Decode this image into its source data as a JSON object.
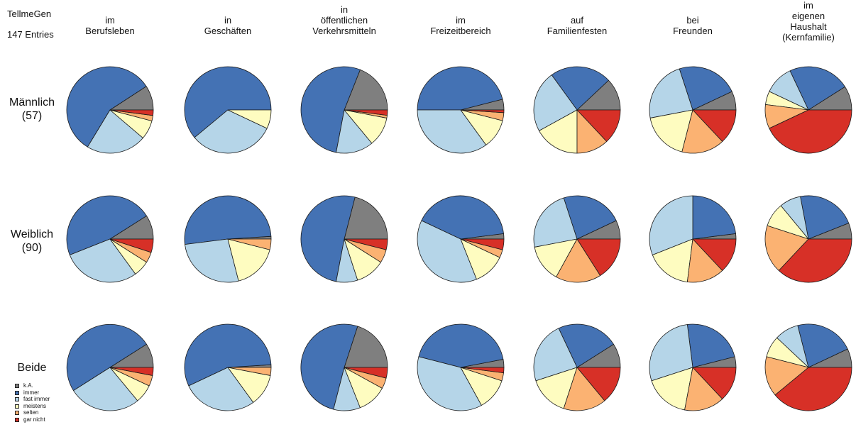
{
  "meta": {
    "source": "TellmeGen",
    "entries": "147 Entries"
  },
  "columns": [
    "im\nBerufsleben",
    "in\nGeschäften",
    "in\nöffentlichen\nVerkehrsmitteln",
    "im\nFreizeitbereich",
    "auf\nFamilienfesten",
    "bei\nFreunden",
    "im\neigenen\nHaushalt\n(Kernfamilie)"
  ],
  "rows": [
    "Männlich\n(57)",
    "Weiblich\n(90)",
    "Beide"
  ],
  "legend": [
    {
      "label": "k.A.",
      "color": "#7f7f7f"
    },
    {
      "label": "immer",
      "color": "#4472b4"
    },
    {
      "label": "fast immer",
      "color": "#b5d5e8"
    },
    {
      "label": "meistens",
      "color": "#fefcc0"
    },
    {
      "label": "selten",
      "color": "#fbb272"
    },
    {
      "label": "gar nicht",
      "color": "#d73027"
    }
  ],
  "chart_data": {
    "type": "pie",
    "categories": [
      "k.A.",
      "immer",
      "fast immer",
      "meistens",
      "selten",
      "gar nicht"
    ],
    "colors": [
      "#7f7f7f",
      "#4472b4",
      "#b5d5e8",
      "#fefcc0",
      "#fbb272",
      "#d73027"
    ],
    "start_angle_deg": 0,
    "direction": "counterclockwise",
    "units": "percent",
    "pies": [
      [
        {
          "column": "im\nBerufsleben",
          "values": [
            9,
            56,
            22,
            7,
            2,
            2
          ]
        },
        {
          "column": "in\nGeschäften",
          "values": [
            0,
            61,
            32,
            7,
            0,
            0
          ]
        },
        {
          "column": "in\nöffentlichen\nVerkehrsmitteln",
          "values": [
            19,
            53,
            14,
            11,
            1,
            2
          ]
        },
        {
          "column": "im\nFreizeitbereich",
          "values": [
            4,
            46,
            35,
            11,
            3,
            1
          ]
        },
        {
          "column": "auf\nFamilienfesten",
          "values": [
            12,
            23,
            23,
            17,
            12,
            13
          ]
        },
        {
          "column": "bei\nFreunden",
          "values": [
            7,
            23,
            23,
            18,
            16,
            13
          ]
        },
        {
          "column": "im\neigenen\nHaushalt\n(Kernfamilie)",
          "values": [
            9,
            23,
            11,
            5,
            9,
            43
          ]
        }
      ],
      [
        {
          "column": "im\nBerufsleben",
          "values": [
            9,
            47,
            29,
            6,
            4,
            5
          ]
        },
        {
          "column": "in\nGeschäften",
          "values": [
            1,
            51,
            27,
            17,
            4,
            0
          ]
        },
        {
          "column": "in\nöffentlichen\nVerkehrsmitteln",
          "values": [
            21,
            51,
            8,
            11,
            5,
            4
          ]
        },
        {
          "column": "im\nFreizeitbereich",
          "values": [
            2,
            41,
            38,
            12,
            3,
            4
          ]
        },
        {
          "column": "auf\nFamilienfesten",
          "values": [
            7,
            23,
            23,
            14,
            17,
            16
          ]
        },
        {
          "column": "bei\nFreunden",
          "values": [
            2,
            23,
            31,
            17,
            14,
            13
          ]
        },
        {
          "column": "im\neigenen\nHaushalt\n(Kernfamilie)",
          "values": [
            6,
            22,
            8,
            9,
            18,
            37
          ]
        }
      ],
      [
        {
          "column": "im\nBerufsleben",
          "values": [
            9,
            50,
            27,
            7,
            4,
            3
          ]
        },
        {
          "column": "in\nGeschäften",
          "values": [
            1,
            56,
            28,
            12,
            3,
            0
          ]
        },
        {
          "column": "in\nöffentlichen\nVerkehrsmitteln",
          "values": [
            20,
            51,
            10,
            11,
            4,
            4
          ]
        },
        {
          "column": "im\nFreizeitbereich",
          "values": [
            3,
            43,
            37,
            12,
            3,
            2
          ]
        },
        {
          "column": "auf\nFamilienfesten",
          "values": [
            9,
            23,
            23,
            15,
            16,
            14
          ]
        },
        {
          "column": "bei\nFreunden",
          "values": [
            4,
            23,
            28,
            17,
            15,
            13
          ]
        },
        {
          "column": "im\neigenen\nHaushalt\n(Kernfamilie)",
          "values": [
            7,
            22,
            9,
            8,
            15,
            39
          ]
        }
      ]
    ]
  }
}
